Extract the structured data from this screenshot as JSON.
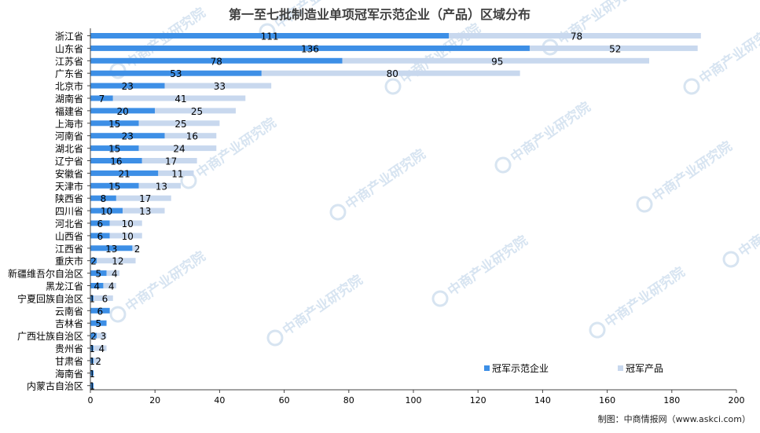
{
  "chart_data": {
    "type": "bar",
    "orientation": "horizontal",
    "stacked": true,
    "title": "第一至七批制造业单项冠军示范企业（产品）区域分布",
    "source_note": "制图：中商情报网（www.askci.com）",
    "watermark_text": "中商产业研究院",
    "categories": [
      "浙江省",
      "山东省",
      "江苏省",
      "广东省",
      "北京市",
      "湖南省",
      "福建省",
      "上海市",
      "河南省",
      "湖北省",
      "辽宁省",
      "安徽省",
      "天津市",
      "陕西省",
      "四川省",
      "河北省",
      "山西省",
      "江西省",
      "重庆市",
      "新疆维吾尔自治区",
      "黑龙江省",
      "宁夏回族自治区",
      "云南省",
      "吉林省",
      "广西壮族自治区",
      "贵州省",
      "甘肃省",
      "海南省",
      "内蒙古自治区"
    ],
    "series": [
      {
        "name": "冠军示范企业",
        "color": "#3d8fe6",
        "values": [
          111,
          136,
          78,
          53,
          23,
          7,
          20,
          15,
          23,
          15,
          16,
          21,
          15,
          8,
          10,
          6,
          6,
          13,
          2,
          5,
          4,
          1,
          6,
          5,
          2,
          1,
          1,
          1,
          1
        ]
      },
      {
        "name": "冠军产品",
        "color": "#c8d8ee",
        "values": [
          78,
          52,
          95,
          80,
          33,
          41,
          25,
          25,
          16,
          24,
          17,
          11,
          13,
          17,
          13,
          10,
          10,
          2,
          12,
          4,
          4,
          6,
          0,
          0,
          3,
          4,
          2,
          0,
          0
        ]
      }
    ],
    "data_labels": [
      [
        "111",
        "78"
      ],
      [
        "136",
        "52"
      ],
      [
        "78",
        "95"
      ],
      [
        "53",
        "80"
      ],
      [
        "23",
        "33"
      ],
      [
        "7",
        "41"
      ],
      [
        "20",
        "25"
      ],
      [
        "15",
        "25"
      ],
      [
        "23",
        "16"
      ],
      [
        "15",
        "24"
      ],
      [
        "16",
        "17"
      ],
      [
        "21",
        "11"
      ],
      [
        "15",
        "13"
      ],
      [
        "8",
        "17"
      ],
      [
        "10",
        "13"
      ],
      [
        "6",
        "10"
      ],
      [
        "6",
        "10"
      ],
      [
        "13",
        "2"
      ],
      [
        "2",
        "12"
      ],
      [
        "5",
        "4"
      ],
      [
        "4",
        "4"
      ],
      [
        "1",
        "6"
      ],
      [
        "6",
        ""
      ],
      [
        "5",
        ""
      ],
      [
        "2",
        "3"
      ],
      [
        "1",
        "4"
      ],
      [
        "1",
        "2"
      ],
      [
        "1",
        ""
      ],
      [
        "1",
        ""
      ]
    ],
    "xlim": [
      0,
      200
    ],
    "xticks": [
      "0",
      "20",
      "40",
      "60",
      "80",
      "100",
      "120",
      "140",
      "160",
      "180",
      "200"
    ],
    "grid": false,
    "legend_position": "bottom-right",
    "colors": {
      "axis": "#444444",
      "text": "#000000",
      "title": "#404040",
      "watermark": "#b8cfe6"
    }
  }
}
